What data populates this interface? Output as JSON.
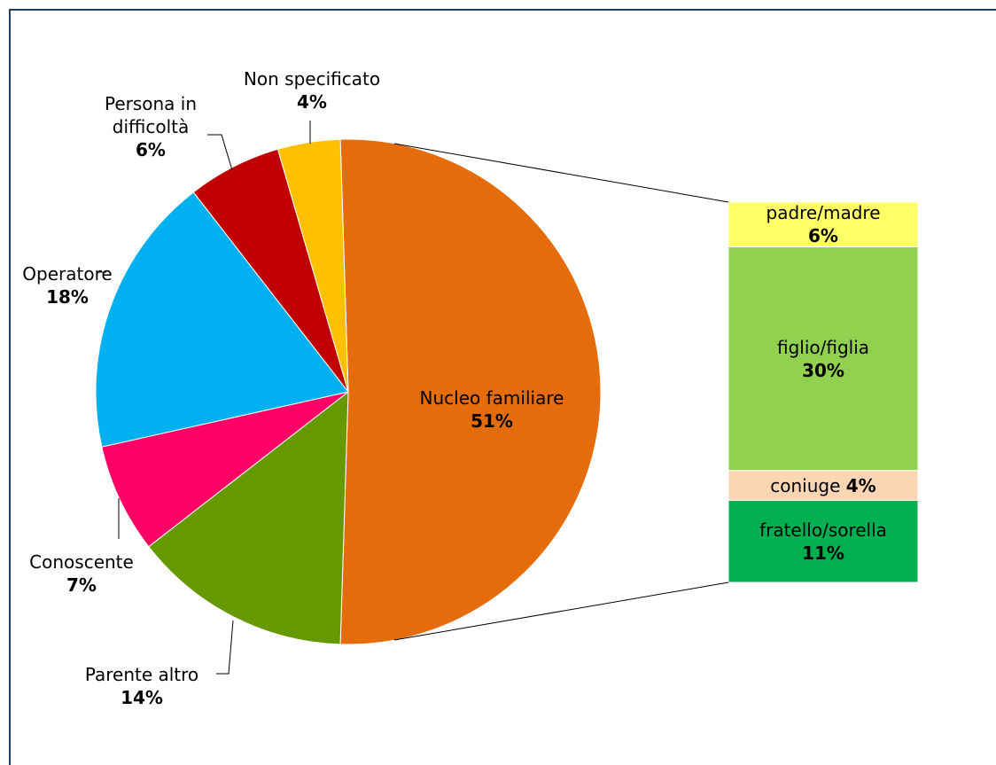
{
  "chart_data": {
    "type": "pie-of-bar",
    "categories": [
      "Nucleo familiare",
      "Parente altro",
      "Conoscente",
      "Operatore",
      "Persona in difficoltà",
      "Non specificato"
    ],
    "values": [
      51,
      14,
      7,
      18,
      6,
      4
    ],
    "value_labels": [
      "51%",
      "14%",
      "7%",
      "18%",
      "6%",
      "4%"
    ],
    "colors": [
      "#e46c0a",
      "#669900",
      "#ff0066",
      "#00b0f0",
      "#c00000",
      "#ffc000"
    ],
    "breakdown": {
      "categories": [
        "padre/madre",
        "figlio/figlia",
        "coniuge",
        "fratello/sorella"
      ],
      "values": [
        6,
        30,
        4,
        11
      ],
      "value_labels": [
        "6%",
        "30%",
        "4%",
        "11%"
      ],
      "colors": [
        "#ffff66",
        "#92d050",
        "#fcd5b4",
        "#00b050"
      ]
    }
  }
}
